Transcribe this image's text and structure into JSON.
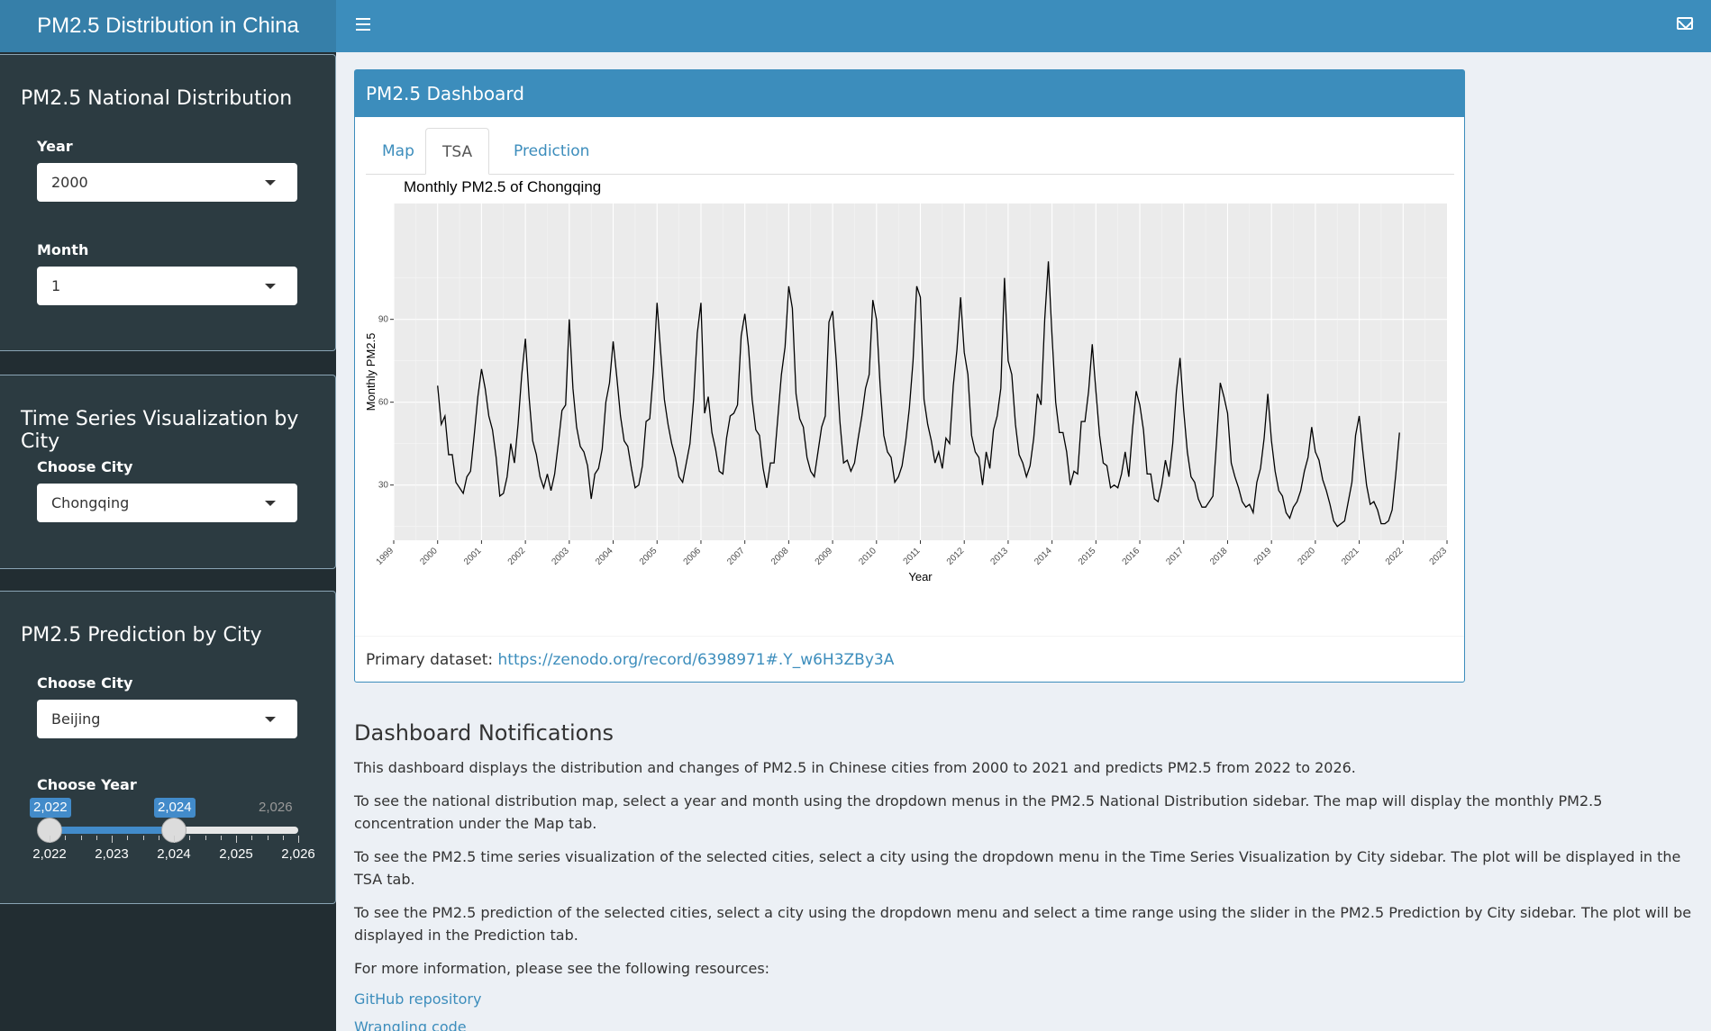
{
  "header": {
    "title": "PM2.5 Distribution in China"
  },
  "sidebar": {
    "national": {
      "title": "PM2.5 National Distribution",
      "year_label": "Year",
      "year_value": "2000",
      "month_label": "Month",
      "month_value": "1"
    },
    "tsa": {
      "title": "Time Series Visualization by City",
      "city_label": "Choose City",
      "city_value": "Chongqing"
    },
    "prediction": {
      "title": "PM2.5 Prediction by City",
      "city_label": "Choose City",
      "city_value": "Beijing",
      "year_label": "Choose Year",
      "slider": {
        "min": 2022,
        "max": 2026,
        "from": 2022,
        "to": 2024,
        "from_label": "2,022",
        "to_label": "2,024",
        "max_label": "2,026",
        "tick_labels": [
          "2,022",
          "2,023",
          "2,024",
          "2,025",
          "2,026"
        ]
      }
    }
  },
  "box": {
    "title": "PM2.5 Dashboard",
    "tabs": [
      "Map",
      "TSA",
      "Prediction"
    ],
    "active_tab": "TSA",
    "footer_label": "Primary dataset: ",
    "footer_link": "https://zenodo.org/record/6398971#.Y_w6H3ZBy3A"
  },
  "chart_data": {
    "type": "line",
    "title": "Monthly PM2.5 of Chongqing",
    "xlabel": "Year",
    "ylabel": "Monthly PM2.5",
    "xlim": [
      1999,
      2023
    ],
    "ylim": [
      10,
      115
    ],
    "x_ticks": [
      1999,
      2000,
      2001,
      2002,
      2003,
      2004,
      2005,
      2006,
      2007,
      2008,
      2009,
      2010,
      2011,
      2012,
      2013,
      2014,
      2015,
      2016,
      2017,
      2018,
      2019,
      2020,
      2021,
      2022,
      2023
    ],
    "y_ticks": [
      30,
      60,
      90
    ],
    "start_year": 2000,
    "series": [
      {
        "values": [
          66,
          52,
          55,
          41,
          41,
          31,
          29,
          27,
          33,
          35,
          48,
          62,
          72,
          65,
          55,
          50,
          40,
          26,
          27,
          33,
          45,
          38,
          52,
          70,
          83,
          62,
          46,
          41,
          33,
          29,
          34,
          28,
          34,
          45,
          57,
          59,
          90,
          65,
          51,
          44,
          42,
          37,
          25,
          34,
          36,
          43,
          60,
          67,
          82,
          69,
          55,
          46,
          44,
          36,
          29,
          30,
          37,
          53,
          54,
          71,
          96,
          78,
          61,
          52,
          45,
          40,
          33,
          31,
          38,
          45,
          61,
          85,
          96,
          56,
          62,
          49,
          43,
          35,
          34,
          47,
          55,
          56,
          59,
          84,
          92,
          80,
          61,
          50,
          48,
          36,
          29,
          38,
          38,
          54,
          70,
          80,
          102,
          94,
          63,
          54,
          51,
          40,
          35,
          33,
          42,
          51,
          55,
          89,
          93,
          75,
          53,
          38,
          39,
          35,
          38,
          47,
          55,
          65,
          70,
          97,
          90,
          66,
          48,
          42,
          40,
          31,
          33,
          37,
          46,
          58,
          75,
          102,
          98,
          61,
          52,
          46,
          38,
          42,
          36,
          47,
          45,
          66,
          79,
          98,
          78,
          70,
          48,
          42,
          40,
          30,
          42,
          36,
          50,
          55,
          65,
          105,
          75,
          70,
          52,
          41,
          38,
          33,
          37,
          47,
          63,
          59,
          90,
          111,
          84,
          60,
          49,
          49,
          42,
          30,
          35,
          34,
          53,
          53,
          64,
          81,
          64,
          48,
          38,
          37,
          29,
          30,
          29,
          34,
          42,
          33,
          50,
          64,
          59,
          50,
          34,
          34,
          25,
          24,
          30,
          39,
          33,
          45,
          64,
          76,
          57,
          42,
          33,
          31,
          25,
          22,
          22,
          24,
          26,
          46,
          67,
          62,
          56,
          38,
          33,
          29,
          24,
          22,
          23,
          20,
          31,
          36,
          47,
          63,
          46,
          35,
          28,
          26,
          20,
          18,
          22,
          24,
          28,
          35,
          40,
          51,
          42,
          39,
          32,
          28,
          23,
          17,
          15,
          16,
          17,
          24,
          31,
          48,
          55,
          42,
          30,
          23,
          24,
          21,
          16,
          16,
          17,
          21,
          34,
          49
        ]
      }
    ]
  },
  "notifications": {
    "title": "Dashboard Notifications",
    "paragraphs": [
      "This dashboard displays the distribution and changes of PM2.5 in Chinese cities from 2000 to 2021 and predicts PM2.5 from 2022 to 2026.",
      "To see the national distribution map, select a year and month using the dropdown menus in the PM2.5 National Distribution sidebar. The map will display the monthly PM2.5 concentration under the Map tab.",
      "To see the PM2.5 time series visualization of the selected cities, select a city using the dropdown menu in the Time Series Visualization by City sidebar. The plot will be displayed in the TSA tab.",
      "To see the PM2.5 prediction of the selected cities, select a city using the dropdown menu and select a time range using the slider in the PM2.5 Prediction by City sidebar. The plot will be displayed in the Prediction tab.",
      "For more information, please see the following resources:"
    ],
    "links": [
      "GitHub repository",
      "Wrangling code"
    ]
  },
  "colors": {
    "navbar": "#3c8dbc",
    "logo": "#367fa9",
    "sidebar": "#222d32",
    "panel": "#2c3b41",
    "plot_bg": "#ebebeb",
    "line": "#000000"
  }
}
